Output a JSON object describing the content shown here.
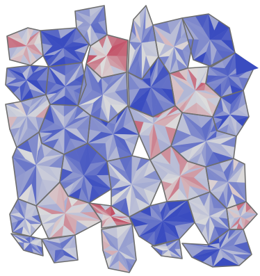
{
  "figure": {
    "description_kind": "voronoi-grain-mesh",
    "colormap": {
      "low": "#3a4cc0",
      "mid": "#dcdcdc",
      "high": "#b40426"
    },
    "edge_color": "#6e6e6e",
    "background": "#ffffff"
  }
}
